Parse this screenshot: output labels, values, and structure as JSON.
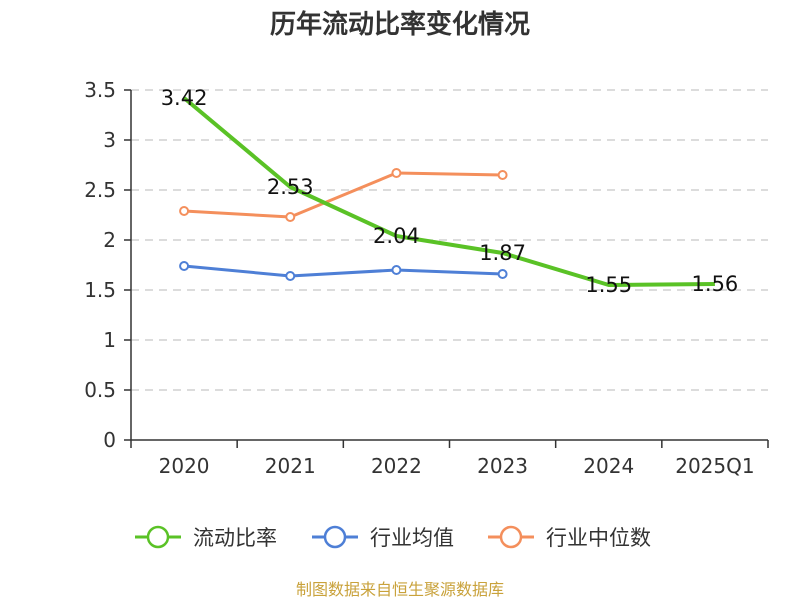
{
  "chart_data": {
    "type": "line",
    "title": "历年流动比率变化情况",
    "categories": [
      "2020",
      "2021",
      "2022",
      "2023",
      "2024",
      "2025Q1"
    ],
    "ylim": [
      0,
      3.5
    ],
    "yticks": [
      "0",
      "0.5",
      "1",
      "1.5",
      "2",
      "2.5",
      "3",
      "3.5"
    ],
    "grid": true,
    "legend_position": "bottom",
    "series": [
      {
        "name": "流动比率",
        "color": "#5ac226",
        "values": [
          3.42,
          2.53,
          2.04,
          1.87,
          1.55,
          1.56
        ],
        "labels": [
          "3.42",
          "2.53",
          "2.04",
          "1.87",
          "1.55",
          "1.56"
        ],
        "show_labels": true
      },
      {
        "name": "行业均值",
        "color": "#4e7fd6",
        "values": [
          1.74,
          1.64,
          1.7,
          1.66,
          null,
          null
        ],
        "show_labels": false
      },
      {
        "name": "行业中位数",
        "color": "#f48f5c",
        "values": [
          2.29,
          2.23,
          2.67,
          2.65,
          null,
          null
        ],
        "show_labels": false
      }
    ],
    "source": "制图数据来自恒生聚源数据库"
  }
}
